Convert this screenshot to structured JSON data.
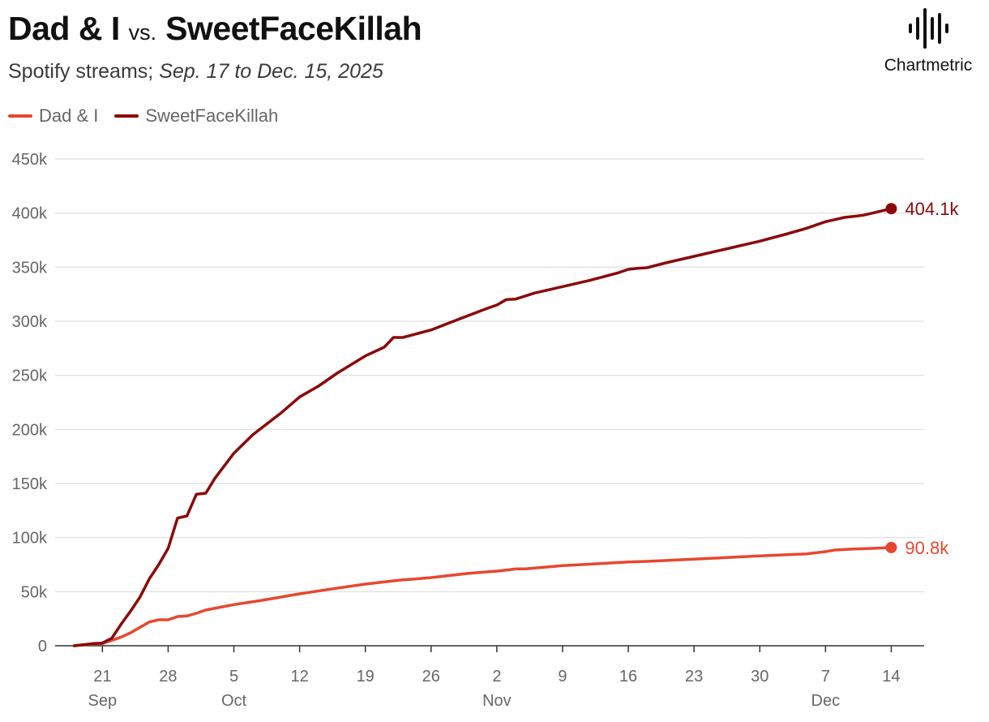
{
  "header": {
    "title_a": "Dad & I",
    "title_vs": "vs.",
    "title_b": "SweetFaceKillah",
    "subtitle_prefix": "Spotify streams;",
    "subtitle_range": "Sep. 17 to Dec. 15, 2025",
    "brand": "Chartmetric"
  },
  "chart_data": {
    "type": "line",
    "title": "Dad & I vs. SweetFaceKillah",
    "subtitle": "Spotify streams; Sep. 17 to Dec. 15, 2025",
    "xlabel": "",
    "ylabel": "",
    "x_domain": [
      "2025-09-17",
      "2025-12-15"
    ],
    "ylim": [
      0,
      450000
    ],
    "y_ticks": [
      0,
      50000,
      100000,
      150000,
      200000,
      250000,
      300000,
      350000,
      400000,
      450000
    ],
    "y_tick_labels": [
      "0",
      "50k",
      "100k",
      "150k",
      "200k",
      "250k",
      "300k",
      "350k",
      "400k",
      "450k"
    ],
    "x_ticks": [
      {
        "date": "2025-09-21",
        "label": "21",
        "month": "Sep"
      },
      {
        "date": "2025-09-28",
        "label": "28",
        "month": ""
      },
      {
        "date": "2025-10-05",
        "label": "5",
        "month": "Oct"
      },
      {
        "date": "2025-10-12",
        "label": "12",
        "month": ""
      },
      {
        "date": "2025-10-19",
        "label": "19",
        "month": ""
      },
      {
        "date": "2025-10-26",
        "label": "26",
        "month": ""
      },
      {
        "date": "2025-11-02",
        "label": "2",
        "month": "Nov"
      },
      {
        "date": "2025-11-09",
        "label": "9",
        "month": ""
      },
      {
        "date": "2025-11-16",
        "label": "16",
        "month": ""
      },
      {
        "date": "2025-11-23",
        "label": "23",
        "month": ""
      },
      {
        "date": "2025-11-30",
        "label": "30",
        "month": ""
      },
      {
        "date": "2025-12-07",
        "label": "7",
        "month": "Dec"
      },
      {
        "date": "2025-12-14",
        "label": "14",
        "month": ""
      }
    ],
    "grid": true,
    "legend_position": "top-left",
    "series": [
      {
        "name": "Dad & I",
        "color": "#E8472F",
        "end_label": "90.8k",
        "points": [
          [
            "2025-09-18",
            0
          ],
          [
            "2025-09-19",
            1000
          ],
          [
            "2025-09-20",
            1500
          ],
          [
            "2025-09-21",
            2000
          ],
          [
            "2025-09-22",
            5000
          ],
          [
            "2025-09-23",
            8000
          ],
          [
            "2025-09-24",
            12000
          ],
          [
            "2025-09-25",
            17000
          ],
          [
            "2025-09-26",
            22000
          ],
          [
            "2025-09-27",
            24000
          ],
          [
            "2025-09-28",
            24000
          ],
          [
            "2025-09-29",
            27000
          ],
          [
            "2025-09-30",
            27500
          ],
          [
            "2025-10-01",
            30000
          ],
          [
            "2025-10-02",
            33000
          ],
          [
            "2025-10-05",
            38000
          ],
          [
            "2025-10-08",
            42000
          ],
          [
            "2025-10-12",
            48000
          ],
          [
            "2025-10-15",
            52000
          ],
          [
            "2025-10-19",
            57000
          ],
          [
            "2025-10-22",
            60000
          ],
          [
            "2025-10-23",
            61000
          ],
          [
            "2025-10-24",
            61500
          ],
          [
            "2025-10-26",
            63000
          ],
          [
            "2025-10-30",
            67000
          ],
          [
            "2025-11-02",
            69000
          ],
          [
            "2025-11-03",
            70000
          ],
          [
            "2025-11-04",
            71000
          ],
          [
            "2025-11-05",
            71000
          ],
          [
            "2025-11-09",
            74000
          ],
          [
            "2025-11-13",
            76000
          ],
          [
            "2025-11-16",
            77500
          ],
          [
            "2025-11-18",
            78000
          ],
          [
            "2025-11-23",
            80000
          ],
          [
            "2025-11-30",
            83000
          ],
          [
            "2025-12-05",
            85000
          ],
          [
            "2025-12-07",
            87000
          ],
          [
            "2025-12-08",
            88500
          ],
          [
            "2025-12-10",
            89500
          ],
          [
            "2025-12-12",
            90000
          ],
          [
            "2025-12-14",
            90800
          ]
        ]
      },
      {
        "name": "SweetFaceKillah",
        "color": "#8B0A0A",
        "end_label": "404.1k",
        "points": [
          [
            "2025-09-18",
            0
          ],
          [
            "2025-09-19",
            1000
          ],
          [
            "2025-09-20",
            2000
          ],
          [
            "2025-09-21",
            2500
          ],
          [
            "2025-09-22",
            7000
          ],
          [
            "2025-09-23",
            20000
          ],
          [
            "2025-09-24",
            32000
          ],
          [
            "2025-09-25",
            45000
          ],
          [
            "2025-09-26",
            62000
          ],
          [
            "2025-09-27",
            75000
          ],
          [
            "2025-09-28",
            90000
          ],
          [
            "2025-09-29",
            118000
          ],
          [
            "2025-09-30",
            120000
          ],
          [
            "2025-10-01",
            140000
          ],
          [
            "2025-10-02",
            141000
          ],
          [
            "2025-10-03",
            155000
          ],
          [
            "2025-10-05",
            178000
          ],
          [
            "2025-10-07",
            195000
          ],
          [
            "2025-10-10",
            215000
          ],
          [
            "2025-10-12",
            230000
          ],
          [
            "2025-10-14",
            240000
          ],
          [
            "2025-10-16",
            252000
          ],
          [
            "2025-10-19",
            268000
          ],
          [
            "2025-10-21",
            276000
          ],
          [
            "2025-10-22",
            285000
          ],
          [
            "2025-10-23",
            285000
          ],
          [
            "2025-10-26",
            292000
          ],
          [
            "2025-10-29",
            302000
          ],
          [
            "2025-11-01",
            312000
          ],
          [
            "2025-11-02",
            315000
          ],
          [
            "2025-11-03",
            320000
          ],
          [
            "2025-11-04",
            320500
          ],
          [
            "2025-11-06",
            326000
          ],
          [
            "2025-11-09",
            332000
          ],
          [
            "2025-11-12",
            338000
          ],
          [
            "2025-11-15",
            345000
          ],
          [
            "2025-11-16",
            348000
          ],
          [
            "2025-11-17",
            349000
          ],
          [
            "2025-11-18",
            349500
          ],
          [
            "2025-11-20",
            354000
          ],
          [
            "2025-11-23",
            360000
          ],
          [
            "2025-11-26",
            366000
          ],
          [
            "2025-11-30",
            374000
          ],
          [
            "2025-12-03",
            381000
          ],
          [
            "2025-12-05",
            386000
          ],
          [
            "2025-12-07",
            392000
          ],
          [
            "2025-12-08",
            394000
          ],
          [
            "2025-12-09",
            396000
          ],
          [
            "2025-12-10",
            397000
          ],
          [
            "2025-12-11",
            398000
          ],
          [
            "2025-12-12",
            400000
          ],
          [
            "2025-12-14",
            404100
          ]
        ]
      }
    ]
  }
}
